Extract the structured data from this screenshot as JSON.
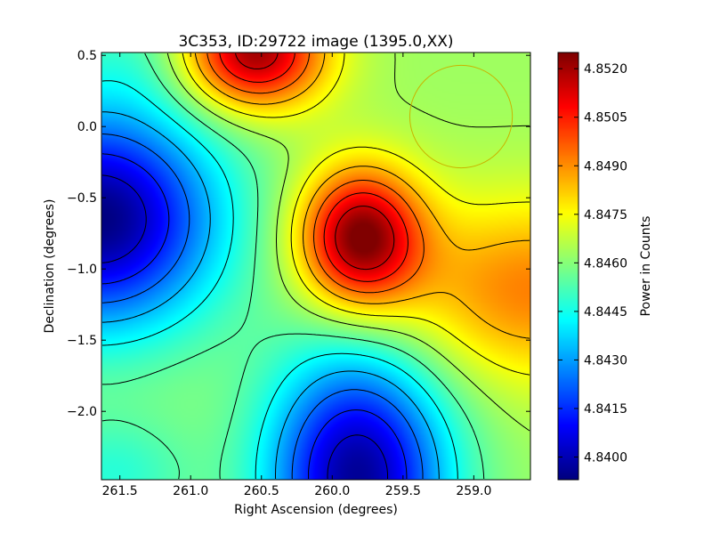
{
  "chart_data": {
    "type": "heatmap",
    "title": "3C353, ID:29722 image (1395.0,XX)",
    "xlabel": "Right Ascension (degrees)",
    "ylabel": "Declination (degrees)",
    "colorbar_label": "Power in Counts",
    "colormap": "jet",
    "xlim": [
      261.63,
      258.6
    ],
    "ylim": [
      -2.48,
      0.52
    ],
    "x_ticks": [
      261.5,
      261.0,
      260.5,
      260.0,
      259.5,
      259.0
    ],
    "x_tick_labels": [
      "261.5",
      "261.0",
      "260.5",
      "260.0",
      "259.5",
      "259.0"
    ],
    "y_ticks": [
      0.5,
      0.0,
      -0.5,
      -1.0,
      -1.5,
      -2.0
    ],
    "y_tick_labels": [
      "0.5",
      "0.0",
      "−0.5",
      "−1.0",
      "−1.5",
      "−2.0"
    ],
    "color_range": [
      4.8393,
      4.8525
    ],
    "colorbar_ticks": [
      4.84,
      4.8415,
      4.843,
      4.8445,
      4.846,
      4.8475,
      4.849,
      4.8505,
      4.852
    ],
    "colorbar_tick_labels": [
      "4.8400",
      "4.8415",
      "4.8430",
      "4.8445",
      "4.8460",
      "4.8475",
      "4.8490",
      "4.8505",
      "4.8520"
    ],
    "contour_count": 12,
    "contour_color": "#000000",
    "background_level": 4.8463,
    "features": [
      {
        "ra": 259.8,
        "dec": -0.78,
        "value": 4.8525,
        "sx": 0.3,
        "sy": 0.34
      },
      {
        "ra": 260.55,
        "dec": 0.52,
        "value": 4.8522,
        "sx": 0.35,
        "sy": 0.28
      },
      {
        "ra": 261.65,
        "dec": -0.65,
        "value": 4.8393,
        "sx": 0.6,
        "sy": 0.55
      },
      {
        "ra": 259.82,
        "dec": -2.45,
        "value": 4.8396,
        "sx": 0.45,
        "sy": 0.62
      },
      {
        "ra": 258.6,
        "dec": -1.15,
        "value": 4.8492,
        "sx": 0.7,
        "sy": 0.45
      },
      {
        "ra": 261.4,
        "dec": 0.55,
        "value": 4.8455,
        "sx": 0.35,
        "sy": 0.3
      },
      {
        "ra": 261.55,
        "dec": -2.45,
        "value": 4.8448,
        "sx": 0.4,
        "sy": 0.3
      }
    ],
    "beam_circle": {
      "ra": 259.09,
      "dec": 0.07,
      "radius_deg": 0.36,
      "color": "#c8b400"
    }
  }
}
